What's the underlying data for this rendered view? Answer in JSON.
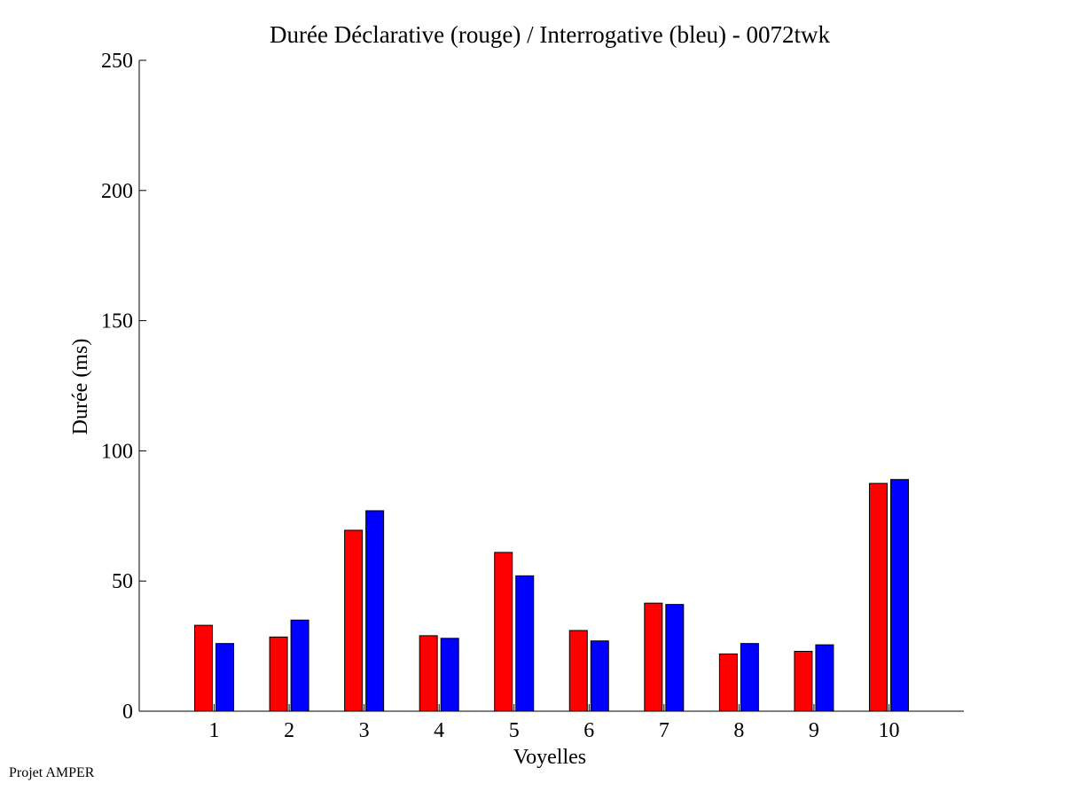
{
  "footer": {
    "credit": "Projet AMPER"
  },
  "colors": {
    "series_red": "#ff0000",
    "series_blue": "#0000ff",
    "axis": "#000000",
    "bar_edge": "#000000"
  },
  "chart_data": {
    "type": "bar",
    "title": "Durée Déclarative (rouge) / Interrogative (bleu) - 0072twk",
    "xlabel": "Voyelles",
    "ylabel": "Durée (ms)",
    "categories": [
      "1",
      "2",
      "3",
      "4",
      "5",
      "6",
      "7",
      "8",
      "9",
      "10"
    ],
    "ylim": [
      0,
      250
    ],
    "yticks": [
      0,
      50,
      100,
      150,
      200,
      250
    ],
    "grid": false,
    "series": [
      {
        "color": "#ff0000",
        "values": [
          33,
          28.5,
          69.5,
          29,
          61,
          31,
          41.5,
          22,
          23,
          87.5
        ]
      },
      {
        "color": "#0000ff",
        "values": [
          26,
          35,
          77,
          28,
          52,
          27,
          41,
          26,
          25.5,
          89
        ]
      }
    ]
  }
}
